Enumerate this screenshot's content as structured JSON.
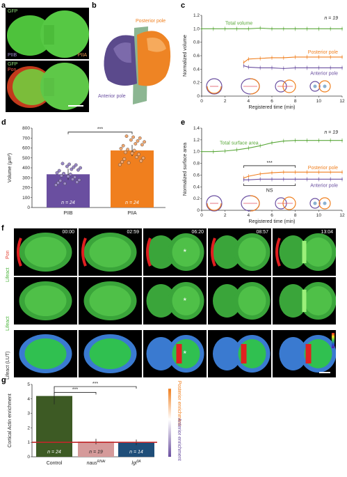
{
  "panel_a": {
    "letter": "a",
    "top_labels": {
      "gfp": "GFP",
      "piib": "PIIB",
      "piia": "PIIA"
    },
    "bottom_labels": {
      "gfp": "GFP",
      "pon": "Pon"
    }
  },
  "panel_b": {
    "letter": "b",
    "posterior": "Posterior pole",
    "anterior": "Anterior pole"
  },
  "panel_c": {
    "letter": "c",
    "n_label": "n = 19",
    "total_label": "Total volume",
    "posterior_label": "Posterior pole",
    "anterior_label": "Anterior pole"
  },
  "panel_d": {
    "letter": "d",
    "sig": "***",
    "n_left": "n = 24",
    "n_right": "n = 24"
  },
  "panel_e": {
    "letter": "e",
    "n_label": "n = 19",
    "total_label": "Total surface area",
    "posterior_label": "Posterior pole",
    "anterior_label": "Anterior pole",
    "sig": "***",
    "ns": "NS"
  },
  "panel_f": {
    "letter": "f",
    "row_labels": {
      "pon": "Pon",
      "lifeact1": "Lifeact",
      "lifeact2": "Lifeact",
      "lut": "Lifeact (LUT)"
    },
    "times": [
      "00:00",
      "02:59",
      "06:20",
      "08:57",
      "13:04"
    ],
    "asterisk": "*"
  },
  "panel_g": {
    "letter": "g",
    "sig1": "***",
    "sig2": "***",
    "post_label": "Posterior enrichment",
    "ant_label": "Anterior enrichment"
  },
  "colors": {
    "green": "#5aa83a",
    "orange": "#f07f1e",
    "purple": "#6a4fa0",
    "dgreen": "#3d5a24",
    "pink": "#d59a9a",
    "blue": "#1f4e79",
    "red": "#c0282a"
  },
  "chart_data": [
    {
      "type": "line",
      "title": "",
      "xlabel": "Registered time (min)",
      "ylabel": "Normalized volume",
      "xlim": [
        0,
        12
      ],
      "ylim": [
        0,
        1.2
      ],
      "xticks": [
        "0",
        "2",
        "4",
        "6",
        "8",
        "10",
        "12"
      ],
      "yticks": [
        "0",
        "0.2",
        "0.4",
        "0.6",
        "0.8",
        "1.0",
        "1.2"
      ],
      "series": [
        {
          "name": "Total volume",
          "x": [
            0,
            1,
            2,
            3,
            4,
            5,
            6,
            7,
            8,
            9,
            10,
            11,
            12
          ],
          "values": [
            1.0,
            1.0,
            1.0,
            1.0,
            1.0,
            1.01,
            1.0,
            1.0,
            1.0,
            1.0,
            1.0,
            1.0,
            1.0
          ]
        },
        {
          "name": "Posterior pole",
          "x": [
            3.6,
            4,
            5,
            6,
            7,
            8,
            9,
            10,
            11,
            12
          ],
          "values": [
            0.5,
            0.55,
            0.56,
            0.57,
            0.57,
            0.58,
            0.58,
            0.58,
            0.58,
            0.58
          ]
        },
        {
          "name": "Anterior pole",
          "x": [
            3.6,
            4,
            5,
            6,
            7,
            8,
            9,
            10,
            11,
            12
          ],
          "values": [
            0.45,
            0.43,
            0.42,
            0.42,
            0.41,
            0.42,
            0.42,
            0.42,
            0.42,
            0.42
          ]
        }
      ]
    },
    {
      "type": "bar",
      "title": "",
      "xlabel": "",
      "ylabel": "Volume (μm³)",
      "ylim": [
        0,
        800
      ],
      "yticks": [
        "0",
        "100",
        "200",
        "300",
        "400",
        "500",
        "600",
        "700",
        "800"
      ],
      "categories": [
        "PIIB",
        "PIIA"
      ],
      "values": [
        335,
        575
      ]
    },
    {
      "type": "line",
      "title": "",
      "xlabel": "Registered time (min)",
      "ylabel": "Normalized surface area",
      "xlim": [
        0,
        12
      ],
      "ylim": [
        0,
        1.4
      ],
      "xticks": [
        "0",
        "2",
        "4",
        "6",
        "8",
        "10",
        "12"
      ],
      "yticks": [
        "0",
        "0.2",
        "0.4",
        "0.6",
        "0.8",
        "1.0",
        "1.2",
        "1.4"
      ],
      "series": [
        {
          "name": "Total surface area",
          "x": [
            0,
            1,
            2,
            3,
            4,
            5,
            6,
            7,
            8,
            9,
            10,
            11,
            12
          ],
          "values": [
            1.0,
            1.0,
            1.01,
            1.03,
            1.06,
            1.1,
            1.15,
            1.18,
            1.19,
            1.19,
            1.19,
            1.19,
            1.19
          ]
        },
        {
          "name": "Posterior pole",
          "x": [
            3.6,
            4,
            5,
            6,
            7,
            8,
            9,
            10,
            11,
            12
          ],
          "values": [
            0.55,
            0.58,
            0.62,
            0.64,
            0.65,
            0.65,
            0.65,
            0.65,
            0.65,
            0.65
          ]
        },
        {
          "name": "Anterior pole",
          "x": [
            3.6,
            4,
            5,
            6,
            7,
            8,
            9,
            10,
            11,
            12
          ],
          "values": [
            0.52,
            0.52,
            0.53,
            0.53,
            0.53,
            0.53,
            0.53,
            0.53,
            0.53,
            0.53
          ]
        }
      ]
    },
    {
      "type": "bar",
      "title": "",
      "xlabel": "",
      "ylabel": "Cortical Actin enrichment",
      "ylim": [
        0,
        5
      ],
      "yticks": [
        "0",
        "1",
        "2",
        "3",
        "4",
        "5"
      ],
      "categories": [
        "Control",
        "naus",
        "lgl"
      ],
      "values": [
        4.2,
        1.05,
        1.0
      ],
      "n_labels": [
        "n = 24",
        "n = 19",
        "n = 14"
      ],
      "category_display": [
        {
          "main": "Control",
          "sup": ""
        },
        {
          "main": "naus",
          "sup": "RNAi"
        },
        {
          "main": "lgl",
          "sup": "3A"
        }
      ]
    }
  ]
}
